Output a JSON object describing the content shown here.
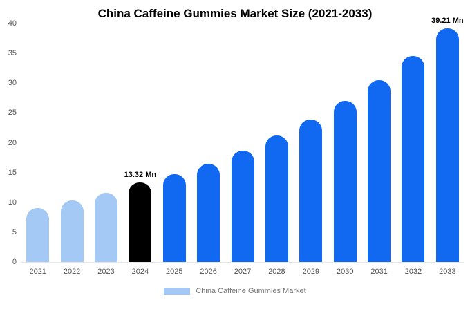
{
  "title": "China Caffeine Gummies Market Size (2021-2033)",
  "legend": {
    "label": "China Caffeine Gummies Market",
    "swatch_color": "#a4c9f5"
  },
  "colors": {
    "light_blue": "#a4c9f5",
    "highlight_black": "#000000",
    "primary_blue": "#1169f2",
    "axis_text": "#555555",
    "legend_text": "#777777"
  },
  "chart_data": {
    "type": "bar",
    "title": "China Caffeine Gummies Market Size (2021-2033)",
    "categories": [
      "2021",
      "2022",
      "2023",
      "2024",
      "2025",
      "2026",
      "2027",
      "2028",
      "2029",
      "2030",
      "2031",
      "2032",
      "2033"
    ],
    "values": [
      9.0,
      10.3,
      11.6,
      13.32,
      14.7,
      16.5,
      18.7,
      21.2,
      23.9,
      27.0,
      30.5,
      34.6,
      39.21
    ],
    "bar_colors": [
      "#a4c9f5",
      "#a4c9f5",
      "#a4c9f5",
      "#000000",
      "#1169f2",
      "#1169f2",
      "#1169f2",
      "#1169f2",
      "#1169f2",
      "#1169f2",
      "#1169f2",
      "#1169f2",
      "#1169f2"
    ],
    "annotations": [
      {
        "category": "2024",
        "text": "13.32 Mn"
      },
      {
        "category": "2033",
        "text": "39.21 Mn"
      }
    ],
    "xlabel": "",
    "ylabel": "",
    "ylim": [
      0,
      40
    ],
    "ytick_step": 5,
    "grid": false,
    "legend_position": "bottom",
    "legend_entries": [
      "China Caffeine Gummies Market"
    ]
  }
}
